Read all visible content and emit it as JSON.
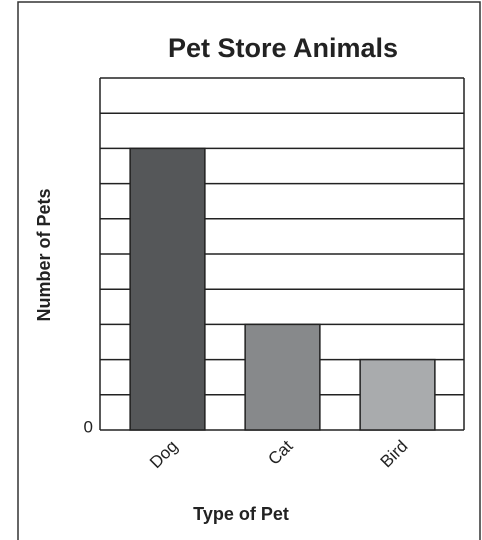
{
  "chart_data": {
    "type": "bar",
    "title": "Pet Store Animals",
    "x_label": "Type of Pet",
    "y_label": "Number of Pets",
    "categories": [
      "Dog",
      "Cat",
      "Bird"
    ],
    "values": [
      8,
      3,
      2
    ],
    "colors": [
      "#555759",
      "#87898b",
      "#a9abad"
    ],
    "ylim": [
      0,
      10
    ],
    "yticks": [
      0
    ],
    "ygrid": [
      1,
      2,
      3,
      4,
      5,
      6,
      7,
      8,
      9,
      10
    ],
    "grid": true
  }
}
